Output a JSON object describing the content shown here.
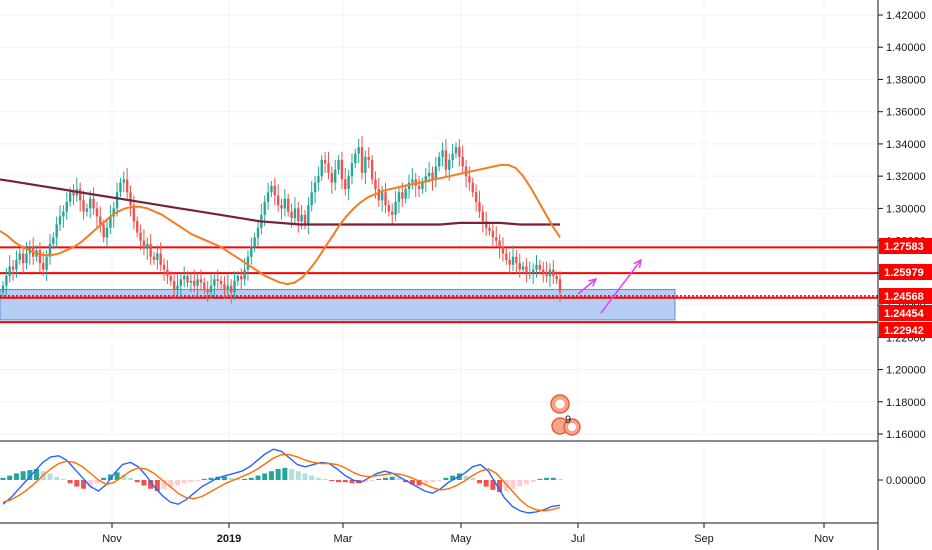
{
  "colors": {
    "up": "#26a69a",
    "down": "#ef5350",
    "ma_fast": "#f57c1f",
    "ma_slow": "#7b1f3a",
    "level_line": "#ff0000",
    "level_bg": "#ff0000",
    "zone_fill": "#a9c6f2",
    "zone_border": "#5b8fd6",
    "arrow": "#e040fb",
    "macd": "#2962ff",
    "signal": "#ff6d00",
    "hist_up": "#26a69a",
    "hist_up_light": "#b2dfdb",
    "hist_down": "#ef5350",
    "hist_down_light": "#ffcdd2"
  },
  "chart_data": [
    {
      "type": "candlestick",
      "title": "",
      "x_labels": [
        "Nov",
        "2019",
        "Mar",
        "May",
        "Jul",
        "Sep",
        "Nov"
      ],
      "y_ticks": [
        "1.42000",
        "1.40000",
        "1.38000",
        "1.36000",
        "1.34000",
        "1.32000",
        "1.30000",
        "1.28000",
        "1.26000",
        "1.24000",
        "1.22000",
        "1.20000",
        "1.18000",
        "1.16000"
      ],
      "ylim": [
        1.155,
        1.425
      ],
      "levels": [
        {
          "label": "1.27583",
          "value": 1.27583
        },
        {
          "label": "1.25979",
          "value": 1.25979
        },
        {
          "label": "1.24568",
          "value": 1.24568
        },
        {
          "label": "1.24454",
          "value": 1.24454
        },
        {
          "label": "1.22942",
          "value": 1.22942
        }
      ],
      "zone": {
        "from": 1.2308,
        "to": 1.2497
      },
      "close_series": [
        1.252,
        1.258,
        1.264,
        1.262,
        1.268,
        1.272,
        1.266,
        1.272,
        1.276,
        1.27,
        1.274,
        1.266,
        1.262,
        1.27,
        1.278,
        1.282,
        1.29,
        1.295,
        1.298,
        1.304,
        1.31,
        1.308,
        1.312,
        1.305,
        1.298,
        1.3,
        1.306,
        1.3,
        1.295,
        1.29,
        1.282,
        1.288,
        1.295,
        1.3,
        1.31,
        1.316,
        1.318,
        1.31,
        1.302,
        1.292,
        1.285,
        1.28,
        1.275,
        1.278,
        1.27,
        1.268,
        1.272,
        1.265,
        1.262,
        1.258,
        1.255,
        1.25,
        1.252,
        1.256,
        1.258,
        1.254,
        1.255,
        1.252,
        1.256,
        1.254,
        1.25,
        1.248,
        1.252,
        1.256,
        1.255,
        1.253,
        1.25,
        1.252,
        1.248,
        1.255,
        1.258,
        1.256,
        1.262,
        1.27,
        1.276,
        1.282,
        1.288,
        1.296,
        1.304,
        1.31,
        1.314,
        1.308,
        1.302,
        1.3,
        1.306,
        1.298,
        1.294,
        1.3,
        1.292,
        1.296,
        1.29,
        1.302,
        1.31,
        1.316,
        1.32,
        1.33,
        1.328,
        1.322,
        1.316,
        1.324,
        1.33,
        1.318,
        1.312,
        1.32,
        1.328,
        1.334,
        1.338,
        1.322,
        1.332,
        1.33,
        1.318,
        1.312,
        1.305,
        1.31,
        1.302,
        1.298,
        1.296,
        1.304,
        1.31,
        1.306,
        1.312,
        1.316,
        1.318,
        1.314,
        1.312,
        1.316,
        1.32,
        1.322,
        1.318,
        1.326,
        1.332,
        1.336,
        1.324,
        1.33,
        1.334,
        1.338,
        1.332,
        1.326,
        1.32,
        1.316,
        1.31,
        1.304,
        1.298,
        1.292,
        1.288,
        1.286,
        1.282,
        1.28,
        1.276,
        1.272,
        1.268,
        1.265,
        1.27,
        1.266,
        1.262,
        1.264,
        1.26,
        1.26,
        1.262,
        1.265,
        1.262,
        1.26,
        1.258,
        1.262,
        1.258,
        1.256,
        1.248
      ],
      "ma_fast_series": [
        1.286,
        1.283,
        1.279,
        1.276,
        1.274,
        1.272,
        1.271,
        1.271,
        1.272,
        1.274,
        1.276,
        1.279,
        1.283,
        1.287,
        1.291,
        1.295,
        1.298,
        1.3,
        1.301,
        1.301,
        1.3,
        1.298,
        1.296,
        1.293,
        1.29,
        1.287,
        1.284,
        1.282,
        1.28,
        1.278,
        1.276,
        1.273,
        1.27,
        1.267,
        1.264,
        1.261,
        1.258,
        1.256,
        1.254,
        1.253,
        1.254,
        1.257,
        1.262,
        1.268,
        1.275,
        1.282,
        1.289,
        1.295,
        1.3,
        1.304,
        1.307,
        1.309,
        1.311,
        1.312,
        1.313,
        1.314,
        1.315,
        1.316,
        1.317,
        1.318,
        1.319,
        1.32,
        1.321,
        1.322,
        1.323,
        1.324,
        1.325,
        1.326,
        1.327,
        1.327,
        1.325,
        1.32,
        1.313,
        1.305,
        1.297,
        1.289,
        1.282
      ],
      "ma_slow_series": [
        1.318,
        1.316,
        1.314,
        1.312,
        1.31,
        1.308,
        1.306,
        1.304,
        1.302,
        1.3,
        1.298,
        1.296,
        1.294,
        1.292,
        1.291,
        1.29,
        1.29,
        1.29,
        1.29,
        1.29,
        1.29,
        1.29,
        1.29,
        1.291,
        1.291,
        1.291,
        1.29,
        1.29,
        1.29
      ]
    },
    {
      "type": "histogram",
      "title": "",
      "y_ticks": [
        "0.00000"
      ],
      "hist_values": [
        0.2,
        0.4,
        0.6,
        0.8,
        0.9,
        1.0,
        0.8,
        0.6,
        0.3,
        0.1,
        -0.3,
        -0.6,
        -0.8,
        -0.6,
        -0.3,
        0.2,
        0.5,
        0.7,
        0.5,
        0.2,
        -0.2,
        -0.5,
        -0.8,
        -1.0,
        -0.8,
        -0.6,
        -0.5,
        -0.3,
        -0.2,
        -0.1,
        0.1,
        0.2,
        0.3,
        0.3,
        0.2,
        0.1,
        0.1,
        0.2,
        0.4,
        0.6,
        0.8,
        1.0,
        1.1,
        1.0,
        0.8,
        0.6,
        0.4,
        0.2,
        0.1,
        -0.1,
        -0.2,
        -0.2,
        -0.3,
        -0.3,
        -0.2,
        -0.1,
        0.1,
        0.2,
        0.3,
        0.2,
        -0.2,
        -0.4,
        -0.5,
        -0.4,
        -0.2,
        -0.1,
        0.2,
        0.4,
        0.6,
        0.4,
        0.2,
        -0.3,
        -0.6,
        -0.9,
        -1.1,
        -1.0,
        -0.8,
        -0.6,
        -0.4,
        -0.2,
        0.1,
        0.2,
        0.2,
        0.1
      ],
      "macd_values": [
        -2.2,
        -1.6,
        -0.8,
        0.0,
        0.8,
        1.6,
        2.1,
        2.2,
        1.8,
        1.0,
        0.2,
        -0.6,
        -1.0,
        -0.4,
        0.6,
        1.4,
        1.6,
        1.2,
        0.4,
        -0.6,
        -1.4,
        -2.0,
        -2.2,
        -1.8,
        -1.2,
        -0.6,
        -0.2,
        0.2,
        0.4,
        0.6,
        0.8,
        1.2,
        1.8,
        2.4,
        2.8,
        2.6,
        2.0,
        1.4,
        1.2,
        1.4,
        1.6,
        1.5,
        1.0,
        0.4,
        0.0,
        -0.2,
        0.2,
        0.6,
        0.8,
        0.6,
        0.2,
        -0.2,
        -0.6,
        -1.0,
        -1.2,
        -0.8,
        -0.2,
        0.2,
        0.6,
        1.2,
        1.4,
        0.8,
        -0.4,
        -1.6,
        -2.4,
        -2.8,
        -3.0,
        -2.9,
        -2.7,
        -2.4,
        -2.3
      ],
      "signal_values": [
        -2.0,
        -1.8,
        -1.4,
        -0.9,
        -0.3,
        0.4,
        1.0,
        1.5,
        1.7,
        1.6,
        1.2,
        0.6,
        0.0,
        -0.4,
        -0.2,
        0.3,
        0.8,
        1.1,
        1.0,
        0.6,
        0.0,
        -0.6,
        -1.2,
        -1.6,
        -1.7,
        -1.5,
        -1.1,
        -0.7,
        -0.3,
        0.0,
        0.3,
        0.6,
        1.0,
        1.5,
        2.0,
        2.3,
        2.3,
        2.1,
        1.8,
        1.6,
        1.5,
        1.5,
        1.4,
        1.1,
        0.7,
        0.4,
        0.3,
        0.4,
        0.5,
        0.6,
        0.5,
        0.3,
        0.0,
        -0.4,
        -0.7,
        -0.9,
        -0.8,
        -0.5,
        -0.1,
        0.4,
        0.8,
        1.0,
        0.6,
        -0.2,
        -1.0,
        -1.8,
        -2.4,
        -2.7,
        -2.8,
        -2.7,
        -2.5
      ]
    }
  ],
  "event_badges": {
    "count": "9"
  }
}
